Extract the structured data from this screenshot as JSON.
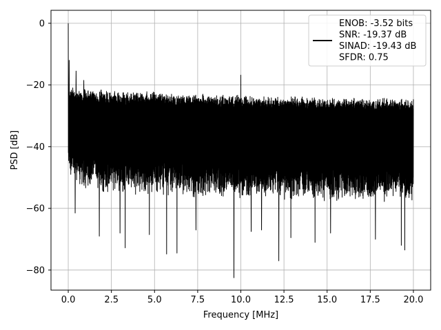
{
  "chart_data": {
    "type": "line",
    "xlabel": "Frequency [MHz]",
    "ylabel": "PSD [dB]",
    "xlim": [
      -1.0,
      21.0
    ],
    "ylim": [
      -86.5,
      4.2
    ],
    "x_ticks": [
      0.0,
      2.5,
      5.0,
      7.5,
      10.0,
      12.5,
      15.0,
      17.5,
      20.0
    ],
    "x_tick_labels": [
      "0.0",
      "2.5",
      "5.0",
      "7.5",
      "10.0",
      "12.5",
      "15.0",
      "17.5",
      "20.0"
    ],
    "y_ticks": [
      0,
      -20,
      -40,
      -60,
      -80
    ],
    "y_tick_labels": [
      "0",
      "−20",
      "−40",
      "−60",
      "−80"
    ],
    "grid": true,
    "series": [
      {
        "color": "#000000",
        "upper_envelope_x": [
          0.0,
          0.5,
          1,
          2,
          3,
          4,
          5,
          6,
          7,
          8,
          9,
          10,
          11,
          12,
          13,
          14,
          15,
          16,
          17,
          18,
          19,
          20
        ],
        "upper_envelope_y": [
          -20,
          -21,
          -21,
          -21.5,
          -22,
          -22,
          -22,
          -22.5,
          -22.5,
          -23,
          -23,
          -23,
          -23.5,
          -23.5,
          -23.5,
          -24,
          -24,
          -24,
          -24,
          -24,
          -24,
          -24
        ],
        "lower_envelope_y": [
          -50,
          -53,
          -54,
          -55,
          -55,
          -56,
          -56,
          -56,
          -57,
          -57,
          -57,
          -57,
          -57,
          -57,
          -58,
          -58,
          -58,
          -58,
          -58,
          -58,
          -58,
          -58
        ],
        "peaks": [
          {
            "x": 0.0,
            "y": 0.0
          },
          {
            "x": 0.05,
            "y": -12.0
          },
          {
            "x": 0.45,
            "y": -15.5
          },
          {
            "x": 10.0,
            "y": -16.8
          },
          {
            "x": 0.9,
            "y": -18.5
          }
        ],
        "troughs": [
          {
            "x": 0.4,
            "y": -61.5
          },
          {
            "x": 1.8,
            "y": -69.0
          },
          {
            "x": 3.0,
            "y": -68.0
          },
          {
            "x": 3.3,
            "y": -72.8
          },
          {
            "x": 4.7,
            "y": -68.5
          },
          {
            "x": 5.7,
            "y": -74.8
          },
          {
            "x": 6.3,
            "y": -74.5
          },
          {
            "x": 7.4,
            "y": -67.0
          },
          {
            "x": 9.6,
            "y": -82.5
          },
          {
            "x": 10.6,
            "y": -67.5
          },
          {
            "x": 11.2,
            "y": -67.0
          },
          {
            "x": 12.2,
            "y": -77.0
          },
          {
            "x": 12.9,
            "y": -69.5
          },
          {
            "x": 14.3,
            "y": -71.0
          },
          {
            "x": 15.2,
            "y": -68.0
          },
          {
            "x": 17.8,
            "y": -70.0
          },
          {
            "x": 19.3,
            "y": -72.0
          },
          {
            "x": 19.5,
            "y": -73.5
          }
        ]
      }
    ],
    "legend": {
      "placement": "upper-right",
      "entries": [
        "ENOB: -3.52 bits",
        "SNR: -19.37 dB",
        "SINAD: -19.43 dB",
        "SFDR: 0.75"
      ]
    }
  }
}
